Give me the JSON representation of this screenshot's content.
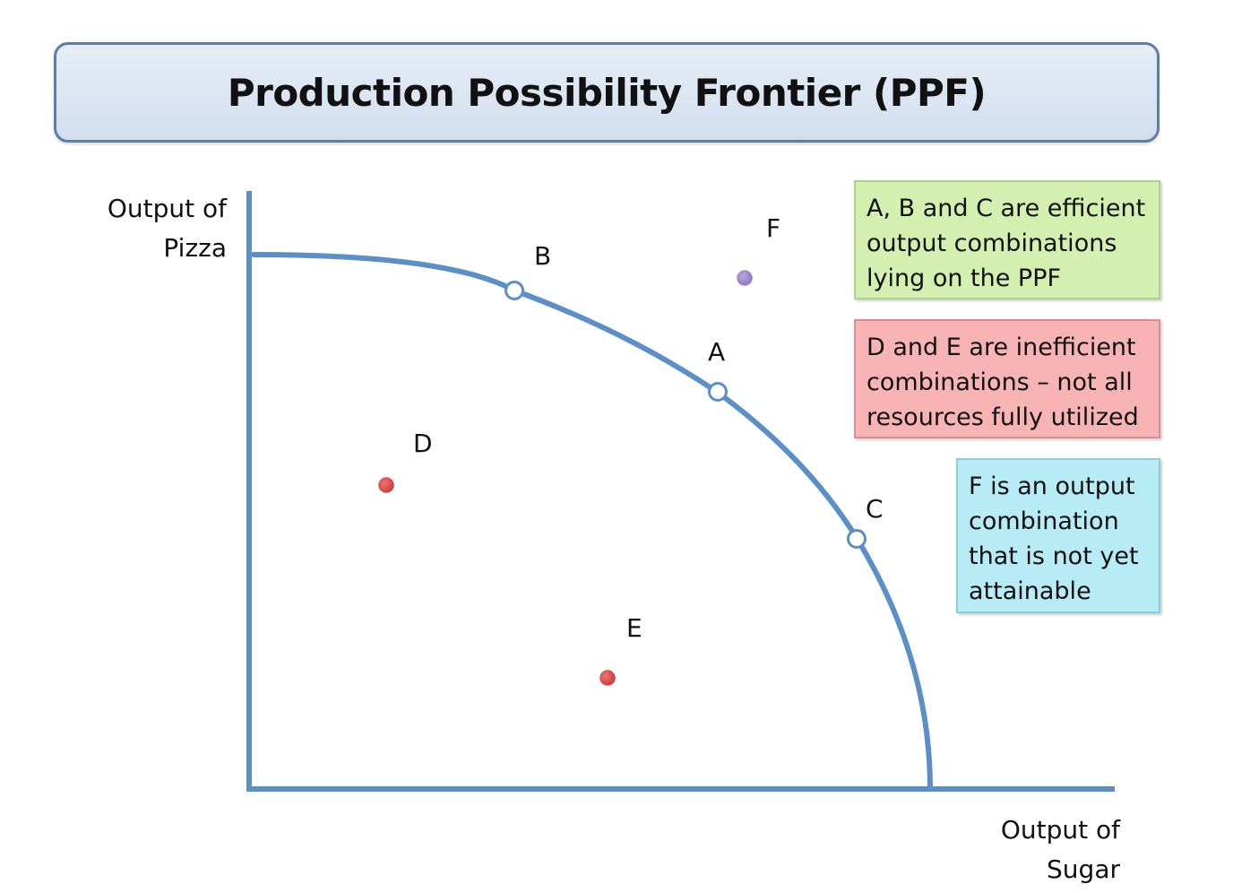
{
  "title": "Production Possibility Frontier (PPF)",
  "y_axis_label": [
    "Output of",
    "Pizza"
  ],
  "x_axis_label": [
    "Output of",
    "Sugar"
  ],
  "points": [
    {
      "id": "A",
      "label": "A",
      "kind": "efficient"
    },
    {
      "id": "B",
      "label": "B",
      "kind": "efficient"
    },
    {
      "id": "C",
      "label": "C",
      "kind": "efficient"
    },
    {
      "id": "D",
      "label": "D",
      "kind": "inefficient"
    },
    {
      "id": "E",
      "label": "E",
      "kind": "inefficient"
    },
    {
      "id": "F",
      "label": "F",
      "kind": "unattainable"
    }
  ],
  "notes": {
    "efficient": [
      "A, B and C are efficient",
      "output combinations",
      "lying on the PPF"
    ],
    "inefficient": [
      "D and E are inefficient",
      "combinations – not all",
      "resources fully utilized"
    ],
    "unattainable": [
      "F is an output",
      "combination",
      "that is not yet",
      "attainable"
    ]
  },
  "colors": {
    "curve": "#5b8fc7",
    "axis": "#5b8fc7",
    "inefficient_point": "#cc4444",
    "unattainable_point": "#9b86c6",
    "note_green": "#d4f0b0",
    "note_red": "#f8b4b4",
    "note_blue": "#b7ebf5"
  }
}
